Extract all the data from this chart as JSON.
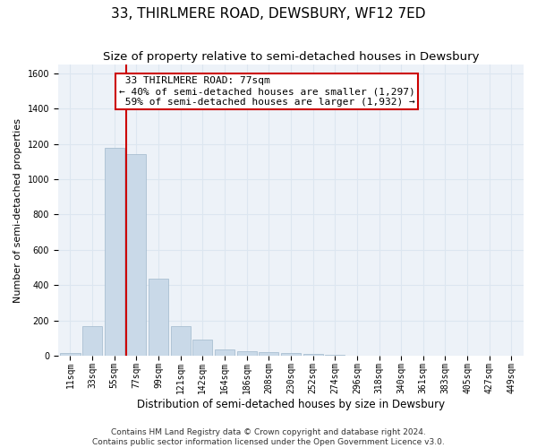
{
  "title": "33, THIRLMERE ROAD, DEWSBURY, WF12 7ED",
  "subtitle": "Size of property relative to semi-detached houses in Dewsbury",
  "xlabel": "Distribution of semi-detached houses by size in Dewsbury",
  "ylabel": "Number of semi-detached properties",
  "footer_line1": "Contains HM Land Registry data © Crown copyright and database right 2024.",
  "footer_line2": "Contains public sector information licensed under the Open Government Licence v3.0.",
  "bar_labels": [
    "11sqm",
    "33sqm",
    "55sqm",
    "77sqm",
    "99sqm",
    "121sqm",
    "142sqm",
    "164sqm",
    "186sqm",
    "208sqm",
    "230sqm",
    "252sqm",
    "274sqm",
    "296sqm",
    "318sqm",
    "340sqm",
    "361sqm",
    "383sqm",
    "405sqm",
    "427sqm",
    "449sqm"
  ],
  "bar_values": [
    15,
    170,
    1175,
    1140,
    440,
    170,
    95,
    40,
    30,
    22,
    15,
    10,
    5,
    3,
    2,
    1,
    1,
    0,
    0,
    0,
    0
  ],
  "bar_color": "#c9d9e8",
  "bar_edgecolor": "#a0b8cc",
  "property_bin_index": 3,
  "redline_label": "33 THIRLMERE ROAD: 77sqm",
  "smaller_pct": 40,
  "smaller_count": 1297,
  "larger_pct": 59,
  "larger_count": 1932,
  "ylim": [
    0,
    1650
  ],
  "yticks": [
    0,
    200,
    400,
    600,
    800,
    1000,
    1200,
    1400,
    1600
  ],
  "grid_color": "#dce6f0",
  "background_color": "#edf2f8",
  "fig_facecolor": "#ffffff",
  "redline_color": "#cc0000",
  "title_fontsize": 11,
  "subtitle_fontsize": 9.5,
  "annotation_fontsize": 8,
  "ylabel_fontsize": 8,
  "xlabel_fontsize": 8.5,
  "tick_fontsize": 7,
  "footer_fontsize": 6.5
}
